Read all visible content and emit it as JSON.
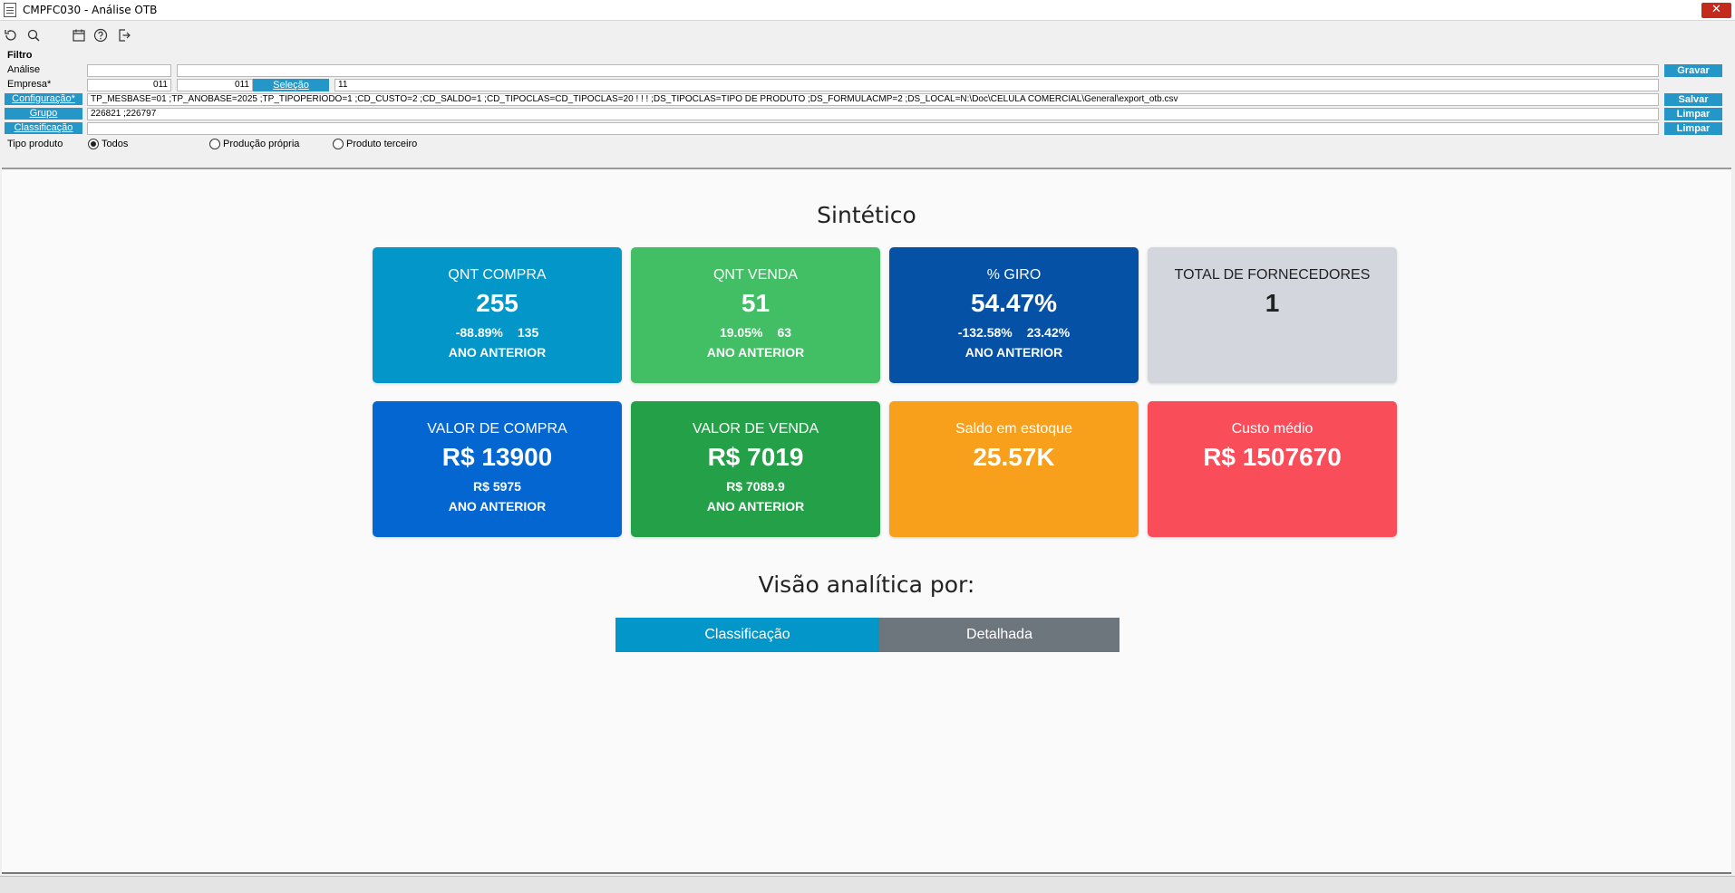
{
  "window": {
    "title": "CMPFC030 - Análise OTB",
    "close": "✕"
  },
  "toolbar": {
    "icons": [
      "refresh-icon",
      "search-icon",
      "calendar-icon",
      "help-icon",
      "exit-icon"
    ]
  },
  "filter": {
    "title": "Filtro",
    "analise_label": "Análise",
    "empresa_label": "Empresa*",
    "empresa_from": "011",
    "empresa_to": "011",
    "selecao_label": "Seleção",
    "selecao_value": "11",
    "configuracao_label": "Configuração*",
    "configuracao_value": "TP_MESBASE=01 ;TP_ANOBASE=2025 ;TP_TIPOPERIODO=1 ;CD_CUSTO=2 ;CD_SALDO=1 ;CD_TIPOCLAS=CD_TIPOCLAS=20 ! ! ! ;DS_TIPOCLAS=TIPO DE PRODUTO ;DS_FORMULACMP=2 ;DS_LOCAL=N:\\Doc\\CELULA COMERCIAL\\General\\export_otb.csv",
    "grupo_label": "Grupo",
    "grupo_value": "226821 ;226797",
    "classificacao_label": "Classificação",
    "classificacao_value": "",
    "tipo_produto_label": "Tipo produto",
    "radios": [
      {
        "label": "Todos",
        "checked": true
      },
      {
        "label": "Produção própria",
        "checked": false
      },
      {
        "label": "Produto terceiro",
        "checked": false
      }
    ],
    "buttons": {
      "gravar": "Gravar",
      "salvar": "Salvar",
      "limpar1": "Limpar",
      "limpar2": "Limpar"
    }
  },
  "dashboard": {
    "sintetico_title": "Sintético",
    "cards": [
      {
        "title": "QNT COMPRA",
        "value": "255",
        "sub1": "-88.89%",
        "sub2": "135",
        "foot": "ANO ANTERIOR",
        "color": "#0396c8"
      },
      {
        "title": "QNT VENDA",
        "value": "51",
        "sub1": "19.05%",
        "sub2": "63",
        "foot": "ANO ANTERIOR",
        "color": "#42be65"
      },
      {
        "title": "% GIRO",
        "value": "54.47%",
        "sub1": "-132.58%",
        "sub2": "23.42%",
        "foot": "ANO ANTERIOR",
        "color": "#0451a5"
      },
      {
        "title": "TOTAL DE FORNECEDORES",
        "value": "1",
        "color": "#d3d7dd"
      },
      {
        "title": "VALOR DE COMPRA",
        "value": "R$ 13900",
        "sub1": "R$ 5975",
        "foot": "ANO ANTERIOR",
        "color": "#0466d0"
      },
      {
        "title": "VALOR DE VENDA",
        "value": "R$ 7019",
        "sub1": "R$ 7089.9",
        "foot": "ANO ANTERIOR",
        "color": "#24a148"
      },
      {
        "title": "Saldo em estoque",
        "value": "25.57K",
        "color": "#f8a01c"
      },
      {
        "title": "Custo médio",
        "value": "R$ 1507670",
        "color": "#f94d5a"
      }
    ],
    "visao_title": "Visão analítica por:",
    "tabs": [
      {
        "label": "Classificação",
        "color": "#0396c8"
      },
      {
        "label": "Detalhada",
        "color": "#6d757d"
      }
    ]
  }
}
